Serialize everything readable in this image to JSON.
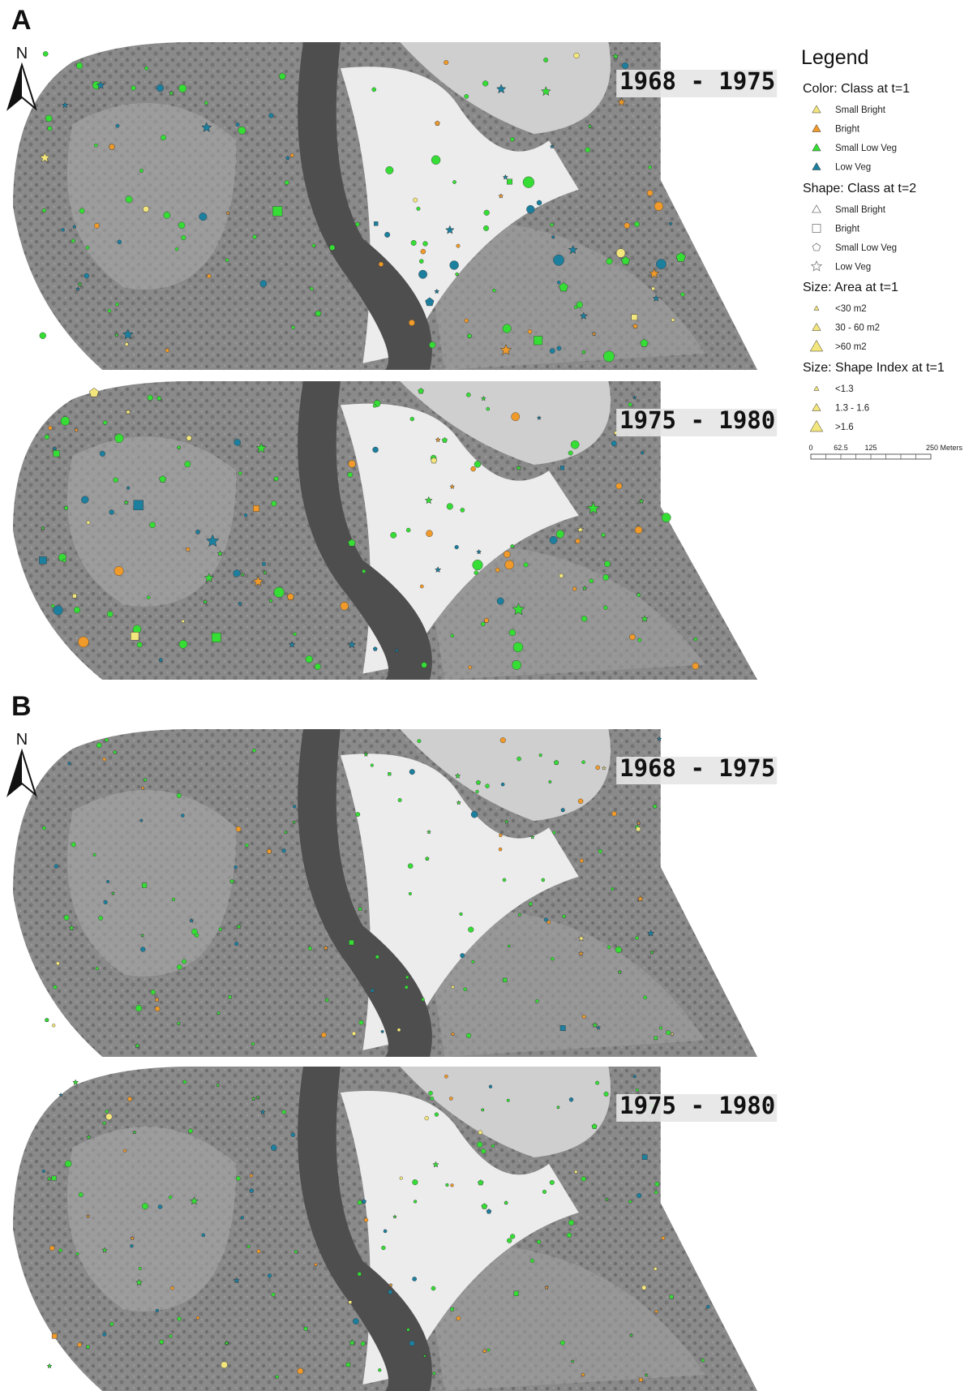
{
  "panels": [
    {
      "label": "A",
      "north": "N",
      "maps": [
        {
          "period": "1968 - 1975"
        },
        {
          "period": "1975 - 1980"
        }
      ]
    },
    {
      "label": "B",
      "north": "N",
      "maps": [
        {
          "period": "1968 - 1975"
        },
        {
          "period": "1975 - 1980"
        }
      ]
    }
  ],
  "legend": {
    "title": "Legend",
    "groups": [
      {
        "heading": "Color: Class at t=1",
        "items": [
          "Small Bright",
          "Bright",
          "Small Low Veg",
          "Low Veg"
        ]
      },
      {
        "heading": "Shape: Class at t=2",
        "items": [
          "Small Bright",
          "Bright",
          "Small Low Veg",
          "Low Veg"
        ]
      },
      {
        "heading": "Size: Area at t=1",
        "items": [
          "<30 m2",
          "30 - 60 m2",
          ">60 m2"
        ]
      },
      {
        "heading": "Size: Shape Index at t=1",
        "items": [
          "<1.3",
          "1.3 - 1.6",
          ">1.6"
        ]
      }
    ],
    "scale_bar": [
      "0",
      "62.5",
      "125",
      "250 Meters"
    ]
  }
}
